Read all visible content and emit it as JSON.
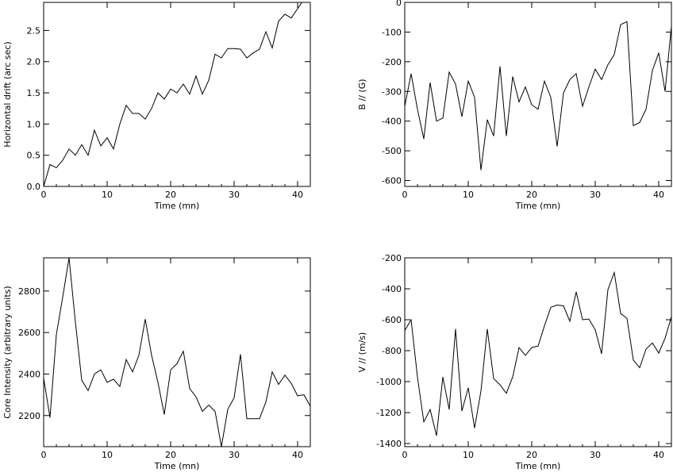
{
  "chart_data": [
    {
      "type": "line",
      "title": "",
      "xlabel": "Time (mn)",
      "ylabel": "Horizontal drift (arc sec)",
      "xlim": [
        0,
        42
      ],
      "ylim": [
        0,
        2.95
      ],
      "xticks": [
        0,
        10,
        20,
        30,
        40
      ],
      "xtick_labels": [
        "0",
        "10",
        "20",
        "30",
        "40"
      ],
      "yticks": [
        0,
        0.5,
        1.0,
        1.5,
        2.0,
        2.5
      ],
      "ytick_labels": [
        "0.0",
        "0.5",
        "1.0",
        "1.5",
        "2.0",
        "2.5"
      ],
      "grid": false,
      "x": [
        0,
        1,
        2,
        3,
        4,
        5,
        6,
        7,
        8,
        9,
        10,
        11,
        12,
        13,
        14,
        15,
        16,
        17,
        18,
        19,
        20,
        21,
        22,
        23,
        24,
        25,
        26,
        27,
        28,
        29,
        30,
        31,
        32,
        33,
        34,
        35,
        36,
        37,
        38,
        39,
        40,
        41,
        42
      ],
      "y": [
        0,
        0.35,
        0.3,
        0.42,
        0.6,
        0.5,
        0.67,
        0.5,
        0.9,
        0.65,
        0.78,
        0.6,
        1.0,
        1.3,
        1.17,
        1.17,
        1.08,
        1.25,
        1.5,
        1.4,
        1.56,
        1.5,
        1.64,
        1.48,
        1.77,
        1.48,
        1.7,
        2.12,
        2.06,
        2.21,
        2.21,
        2.2,
        2.06,
        2.14,
        2.2,
        2.48,
        2.22,
        2.65,
        2.76,
        2.7,
        2.85,
        3.0,
        3.0
      ]
    },
    {
      "type": "line",
      "title": "",
      "xlabel": "Time (mn)",
      "ylabel": "B // (G)",
      "xlim": [
        0,
        42
      ],
      "ylim": [
        -620,
        0
      ],
      "xticks": [
        0,
        10,
        20,
        30,
        40
      ],
      "xtick_labels": [
        "0",
        "10",
        "20",
        "30",
        "40"
      ],
      "yticks": [
        -600,
        -500,
        -400,
        -300,
        -200,
        -100,
        0
      ],
      "ytick_labels": [
        "-600",
        "-500",
        "-400",
        "-300",
        "-200",
        "-100",
        "0"
      ],
      "grid": false,
      "x": [
        0,
        1,
        2,
        3,
        4,
        5,
        6,
        7,
        8,
        9,
        10,
        11,
        12,
        13,
        14,
        15,
        16,
        17,
        18,
        19,
        20,
        21,
        22,
        23,
        24,
        25,
        26,
        27,
        28,
        29,
        30,
        31,
        32,
        33,
        34,
        35,
        36,
        37,
        38,
        39,
        40,
        41,
        42
      ],
      "y": [
        -350,
        -240,
        -360,
        -460,
        -270,
        -400,
        -390,
        -235,
        -275,
        -385,
        -265,
        -320,
        -565,
        -395,
        -450,
        -215,
        -450,
        -250,
        -335,
        -285,
        -345,
        -360,
        -265,
        -320,
        -485,
        -305,
        -260,
        -240,
        -350,
        -285,
        -225,
        -260,
        -210,
        -175,
        -75,
        -65,
        -415,
        -405,
        -360,
        -230,
        -170,
        -300,
        -80
      ]
    },
    {
      "type": "line",
      "title": "",
      "xlabel": "Time (mn)",
      "ylabel": "Core Intensity (arbitrary units)",
      "xlim": [
        0,
        42
      ],
      "ylim": [
        2050,
        2960
      ],
      "xticks": [
        0,
        10,
        20,
        30,
        40
      ],
      "xtick_labels": [
        "0",
        "10",
        "20",
        "30",
        "40"
      ],
      "yticks": [
        2200,
        2400,
        2600,
        2800
      ],
      "ytick_labels": [
        "2200",
        "2400",
        "2600",
        "2800"
      ],
      "grid": false,
      "x": [
        0,
        1,
        2,
        3,
        4,
        5,
        6,
        7,
        8,
        9,
        10,
        11,
        12,
        13,
        14,
        15,
        16,
        17,
        18,
        19,
        20,
        21,
        22,
        23,
        24,
        25,
        26,
        27,
        28,
        29,
        30,
        31,
        32,
        33,
        34,
        35,
        36,
        37,
        38,
        39,
        40,
        41,
        42
      ],
      "y": [
        2380,
        2190,
        2590,
        2770,
        2960,
        2650,
        2370,
        2320,
        2400,
        2420,
        2360,
        2375,
        2340,
        2470,
        2410,
        2490,
        2665,
        2490,
        2360,
        2205,
        2420,
        2450,
        2510,
        2330,
        2290,
        2220,
        2250,
        2220,
        2050,
        2230,
        2285,
        2495,
        2185,
        2185,
        2185,
        2265,
        2410,
        2350,
        2395,
        2355,
        2295,
        2300,
        2245
      ]
    },
    {
      "type": "line",
      "title": "",
      "xlabel": "Time (mn)",
      "ylabel": "V // (m/s)",
      "xlim": [
        0,
        42
      ],
      "ylim": [
        -1420,
        -200
      ],
      "xticks": [
        0,
        10,
        20,
        30,
        40
      ],
      "xtick_labels": [
        "0",
        "10",
        "20",
        "30",
        "40"
      ],
      "yticks": [
        -1400,
        -1200,
        -1000,
        -800,
        -600,
        -400,
        -200
      ],
      "ytick_labels": [
        "-1400",
        "-1200",
        "-1000",
        "-800",
        "-600",
        "-400",
        "-200"
      ],
      "grid": false,
      "x": [
        0,
        1,
        2,
        3,
        4,
        5,
        6,
        7,
        8,
        9,
        10,
        11,
        12,
        13,
        14,
        15,
        16,
        17,
        18,
        19,
        20,
        21,
        22,
        23,
        24,
        25,
        26,
        27,
        28,
        29,
        30,
        31,
        32,
        33,
        34,
        35,
        36,
        37,
        38,
        39,
        40,
        41,
        42
      ],
      "y": [
        -670,
        -600,
        -970,
        -1260,
        -1180,
        -1350,
        -970,
        -1180,
        -660,
        -1190,
        -1040,
        -1300,
        -1060,
        -660,
        -980,
        -1020,
        -1075,
        -970,
        -780,
        -830,
        -780,
        -770,
        -640,
        -520,
        -505,
        -510,
        -610,
        -420,
        -600,
        -595,
        -665,
        -820,
        -405,
        -295,
        -560,
        -590,
        -860,
        -910,
        -790,
        -750,
        -815,
        -720,
        -580
      ]
    }
  ]
}
